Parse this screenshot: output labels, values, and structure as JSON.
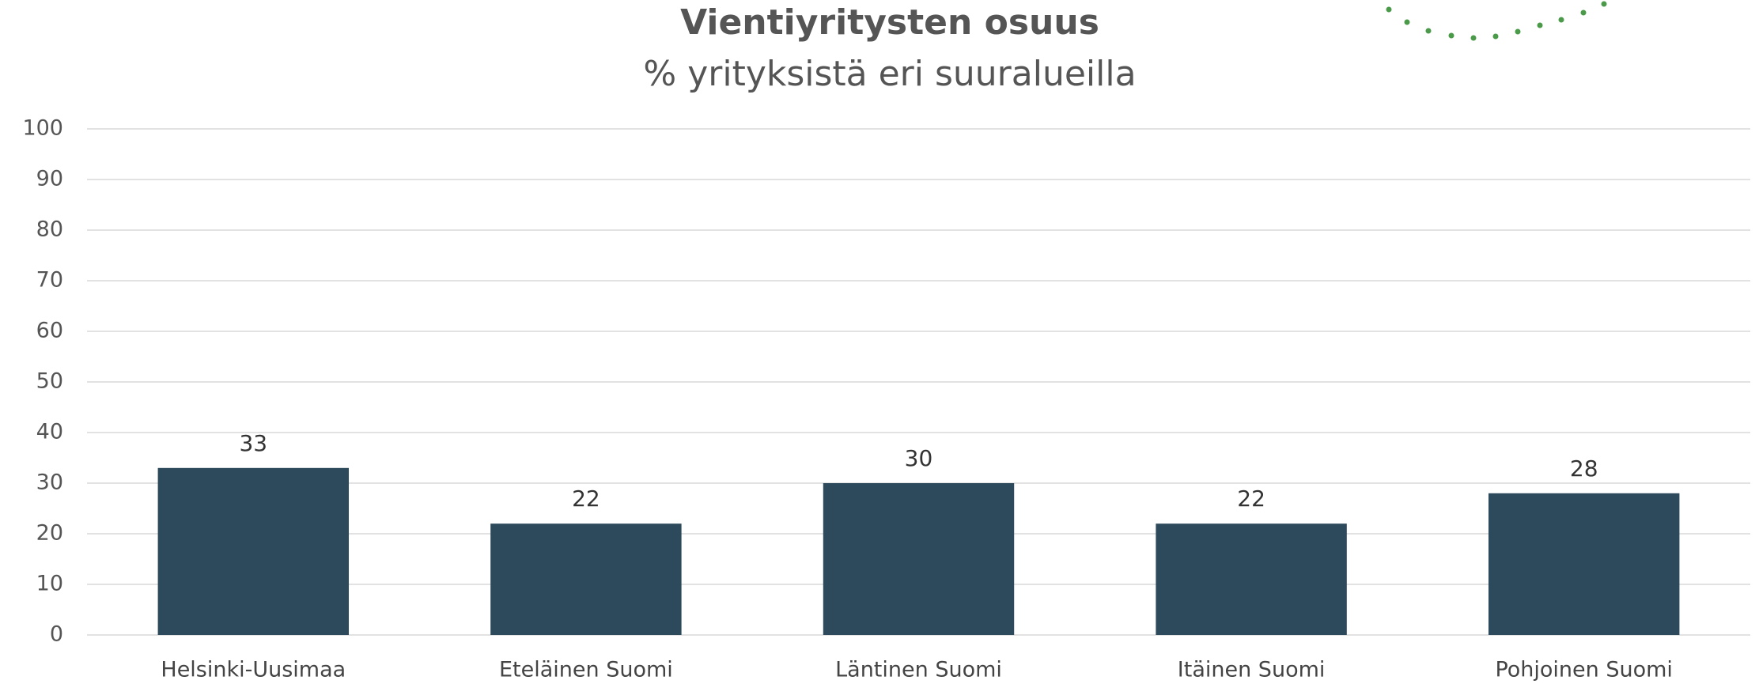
{
  "chart_data": {
    "type": "bar",
    "title": "Vientiyritysten osuus",
    "subtitle": "% yrityksistä eri suuralueilla",
    "categories": [
      "Helsinki-Uusimaa",
      "Eteläinen Suomi",
      "Läntinen Suomi",
      "Itäinen Suomi",
      "Pohjoinen Suomi"
    ],
    "values": [
      33,
      22,
      30,
      22,
      28
    ],
    "color": "#2d4a5c",
    "ylim": [
      0,
      100
    ],
    "yticks": [
      0,
      10,
      20,
      30,
      40,
      50,
      60,
      70,
      80,
      90,
      100
    ],
    "grid": true
  }
}
